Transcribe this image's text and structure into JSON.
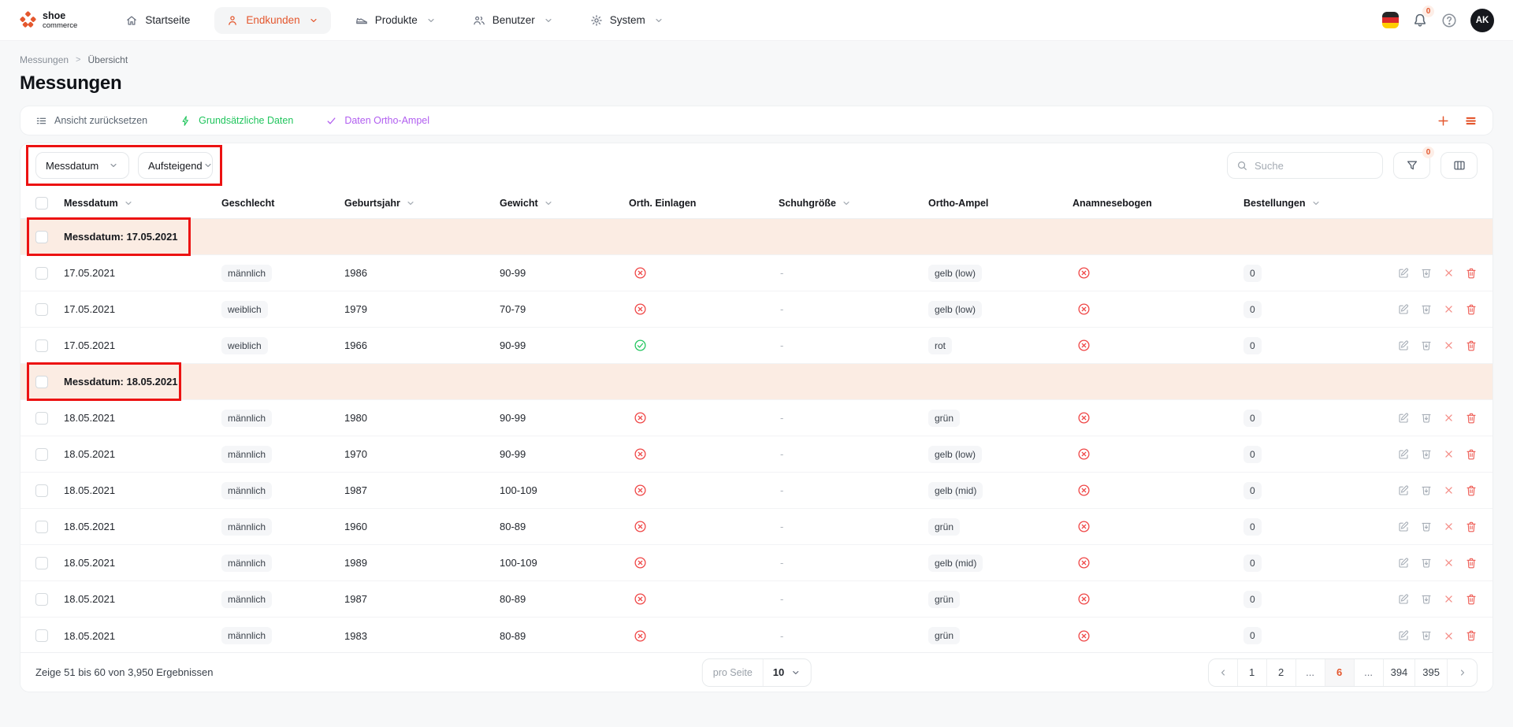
{
  "nav": {
    "brand": {
      "line1": "shoe",
      "line2": "commerce"
    },
    "items": [
      {
        "label": "Startseite",
        "icon": "home-icon",
        "active": false,
        "chevron": false
      },
      {
        "label": "Endkunden",
        "icon": "person-icon",
        "active": true,
        "chevron": true
      },
      {
        "label": "Produkte",
        "icon": "shoe-icon",
        "active": false,
        "chevron": true
      },
      {
        "label": "Benutzer",
        "icon": "people-icon",
        "active": false,
        "chevron": true
      },
      {
        "label": "System",
        "icon": "gear-icon",
        "active": false,
        "chevron": true
      }
    ],
    "language_flag": "german-flag",
    "notification_count": "0",
    "avatar_initials": "AK"
  },
  "breadcrumb": {
    "items": [
      "Messungen",
      "Übersicht"
    ],
    "separator": ">"
  },
  "page_title": "Messungen",
  "toolbar": {
    "reset_view_label": "Ansicht zurücksetzen",
    "views": [
      {
        "label": "Grundsätzliche Daten",
        "icon": "lightning-icon",
        "color": "#21c55d"
      },
      {
        "label": "Daten Ortho-Ampel",
        "icon": "check-icon",
        "color": "#b15ef0"
      }
    ],
    "add_icon": "plus-icon",
    "rows_icon": "rows-icon"
  },
  "filters": {
    "sort_field_value": "Messdatum",
    "sort_direction_value": "Aufsteigend",
    "search_placeholder": "Suche",
    "filter_badge_count": "0"
  },
  "table": {
    "columns": [
      {
        "label": "Messdatum",
        "sortable": true
      },
      {
        "label": "Geschlecht",
        "sortable": false
      },
      {
        "label": "Geburtsjahr",
        "sortable": true
      },
      {
        "label": "Gewicht",
        "sortable": true
      },
      {
        "label": "Orth. Einlagen",
        "sortable": false
      },
      {
        "label": "Schuhgröße",
        "sortable": true
      },
      {
        "label": "Ortho-Ampel",
        "sortable": false
      },
      {
        "label": "Anamnesebogen",
        "sortable": false
      },
      {
        "label": "Bestellungen",
        "sortable": true
      }
    ],
    "row_actions": [
      "edit-icon",
      "archive-icon",
      "remove-icon",
      "trash-icon"
    ],
    "groups": [
      {
        "label": "Messdatum: 17.05.2021",
        "annotated": true,
        "annotation_width": 208,
        "rows": [
          {
            "messdatum": "17.05.2021",
            "geschlecht": "männlich",
            "geburtsjahr": "1986",
            "gewicht": "90-99",
            "orth_einlagen": "no",
            "schuhgroesse": "-",
            "ortho_ampel": "gelb (low)",
            "anamnesebogen": "no",
            "bestellungen": "0"
          },
          {
            "messdatum": "17.05.2021",
            "geschlecht": "weiblich",
            "geburtsjahr": "1979",
            "gewicht": "70-79",
            "orth_einlagen": "no",
            "schuhgroesse": "-",
            "ortho_ampel": "gelb (low)",
            "anamnesebogen": "no",
            "bestellungen": "0"
          },
          {
            "messdatum": "17.05.2021",
            "geschlecht": "weiblich",
            "geburtsjahr": "1966",
            "gewicht": "90-99",
            "orth_einlagen": "yes",
            "schuhgroesse": "-",
            "ortho_ampel": "rot",
            "anamnesebogen": "no",
            "bestellungen": "0"
          }
        ]
      },
      {
        "label": "Messdatum: 18.05.2021",
        "annotated": true,
        "annotation_width": 196,
        "rows": [
          {
            "messdatum": "18.05.2021",
            "geschlecht": "männlich",
            "geburtsjahr": "1980",
            "gewicht": "90-99",
            "orth_einlagen": "no",
            "schuhgroesse": "-",
            "ortho_ampel": "grün",
            "anamnesebogen": "no",
            "bestellungen": "0"
          },
          {
            "messdatum": "18.05.2021",
            "geschlecht": "männlich",
            "geburtsjahr": "1970",
            "gewicht": "90-99",
            "orth_einlagen": "no",
            "schuhgroesse": "-",
            "ortho_ampel": "gelb (low)",
            "anamnesebogen": "no",
            "bestellungen": "0"
          },
          {
            "messdatum": "18.05.2021",
            "geschlecht": "männlich",
            "geburtsjahr": "1987",
            "gewicht": "100-109",
            "orth_einlagen": "no",
            "schuhgroesse": "-",
            "ortho_ampel": "gelb (mid)",
            "anamnesebogen": "no",
            "bestellungen": "0"
          },
          {
            "messdatum": "18.05.2021",
            "geschlecht": "männlich",
            "geburtsjahr": "1960",
            "gewicht": "80-89",
            "orth_einlagen": "no",
            "schuhgroesse": "-",
            "ortho_ampel": "grün",
            "anamnesebogen": "no",
            "bestellungen": "0"
          },
          {
            "messdatum": "18.05.2021",
            "geschlecht": "männlich",
            "geburtsjahr": "1989",
            "gewicht": "100-109",
            "orth_einlagen": "no",
            "schuhgroesse": "-",
            "ortho_ampel": "gelb (mid)",
            "anamnesebogen": "no",
            "bestellungen": "0"
          },
          {
            "messdatum": "18.05.2021",
            "geschlecht": "männlich",
            "geburtsjahr": "1987",
            "gewicht": "80-89",
            "orth_einlagen": "no",
            "schuhgroesse": "-",
            "ortho_ampel": "grün",
            "anamnesebogen": "no",
            "bestellungen": "0"
          },
          {
            "messdatum": "18.05.2021",
            "geschlecht": "männlich",
            "geburtsjahr": "1983",
            "gewicht": "80-89",
            "orth_einlagen": "no",
            "schuhgroesse": "-",
            "ortho_ampel": "grün",
            "anamnesebogen": "no",
            "bestellungen": "0"
          }
        ]
      }
    ]
  },
  "footer": {
    "summary": "Zeige 51 bis 60 von 3,950 Ergebnissen",
    "per_page_label": "pro Seite",
    "per_page_value": "10",
    "pages": [
      "1",
      "2",
      "...",
      "6",
      "...",
      "394",
      "395"
    ],
    "active_page": "6"
  },
  "colors": {
    "accent_orange": "#e4572e",
    "view_green": "#21c55d",
    "view_purple": "#b15ef0",
    "annotation_red": "#ec1212",
    "group_row_bg": "#fbece3",
    "status_red": "#ef4444",
    "status_green": "#22c55e"
  }
}
